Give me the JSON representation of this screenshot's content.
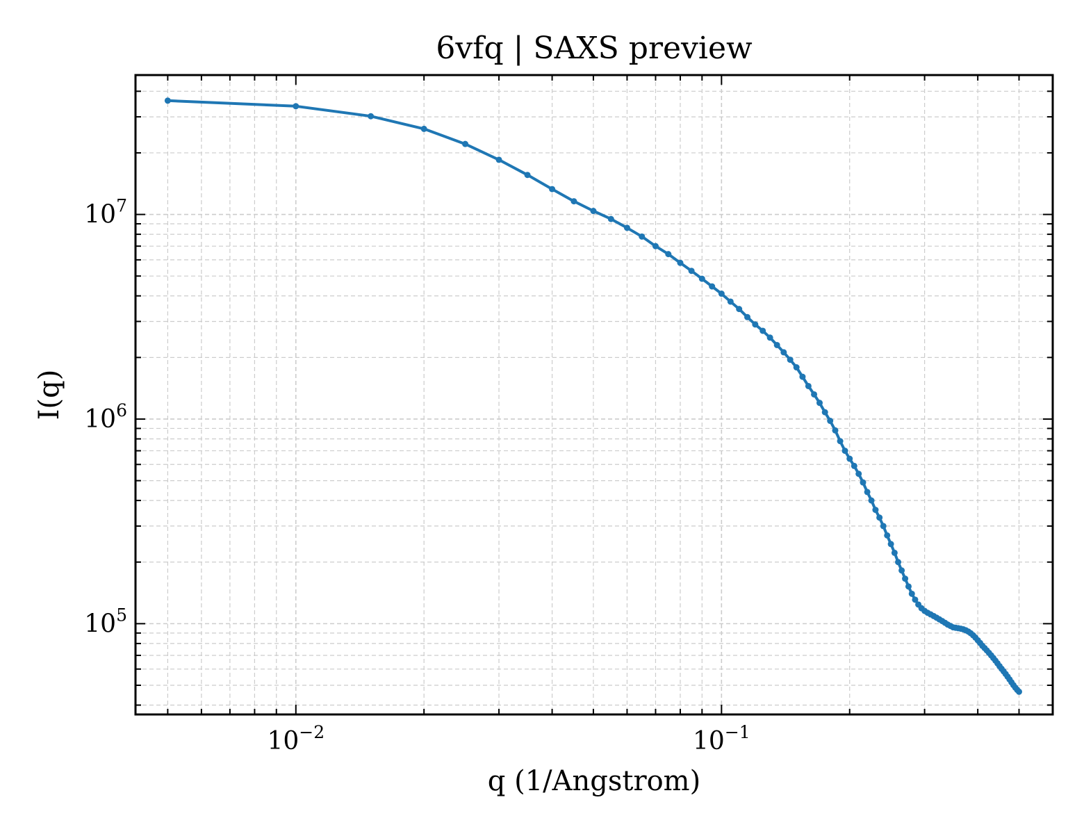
{
  "chart_data": {
    "type": "line",
    "title": "6vfq | SAXS preview",
    "xlabel": "q (1/Angstrom)",
    "ylabel": "I(q)",
    "xscale": "log",
    "yscale": "log",
    "xlim": [
      0.0042,
      0.6
    ],
    "ylim": [
      36000,
      48000000
    ],
    "grid": true,
    "x_ticks": [
      {
        "value": 0.01,
        "base": "10",
        "exp": "−2"
      },
      {
        "value": 0.1,
        "base": "10",
        "exp": "−1"
      }
    ],
    "y_ticks": [
      {
        "value": 100000,
        "base": "10",
        "exp": "5"
      },
      {
        "value": 1000000,
        "base": "10",
        "exp": "6"
      },
      {
        "value": 10000000,
        "base": "10",
        "exp": "7"
      }
    ],
    "colors": {
      "line": "#1f77b4",
      "grid": "#cccccc",
      "axes": "#000000"
    },
    "series": [
      {
        "x": [
          0.005,
          0.01,
          0.015,
          0.02,
          0.025,
          0.03,
          0.035,
          0.04,
          0.045,
          0.05,
          0.055,
          0.06,
          0.065,
          0.07,
          0.075,
          0.08,
          0.085,
          0.09,
          0.095,
          0.1,
          0.105,
          0.11,
          0.115,
          0.12,
          0.125,
          0.13,
          0.135,
          0.14,
          0.145,
          0.15,
          0.155,
          0.16,
          0.165,
          0.17,
          0.175,
          0.18,
          0.185,
          0.19,
          0.195,
          0.2,
          0.205,
          0.21,
          0.215,
          0.22,
          0.225,
          0.23,
          0.235,
          0.24,
          0.245,
          0.25,
          0.255,
          0.26,
          0.265,
          0.27,
          0.275,
          0.28,
          0.285,
          0.29,
          0.295,
          0.3,
          0.305,
          0.31,
          0.315,
          0.32,
          0.325,
          0.33,
          0.335,
          0.34,
          0.345,
          0.35,
          0.355,
          0.36,
          0.365,
          0.37,
          0.375,
          0.38,
          0.385,
          0.39,
          0.395,
          0.4,
          0.405,
          0.41,
          0.415,
          0.42,
          0.425,
          0.43,
          0.435,
          0.44,
          0.445,
          0.45,
          0.455,
          0.46,
          0.465,
          0.47,
          0.475,
          0.48,
          0.485,
          0.49,
          0.495,
          0.5
        ],
        "y": [
          36000000,
          33800000,
          30200000,
          26200000,
          22100000,
          18500000,
          15600000,
          13300000,
          11600000,
          10400000,
          9500000,
          8600000,
          7800000,
          7000000,
          6400000,
          5800000,
          5300000,
          4850000,
          4450000,
          4100000,
          3750000,
          3450000,
          3150000,
          2900000,
          2700000,
          2500000,
          2300000,
          2120000,
          1950000,
          1790000,
          1610000,
          1450000,
          1320000,
          1200000,
          1080000,
          980000,
          880000,
          780000,
          700000,
          640000,
          590000,
          540000,
          490000,
          440000,
          400000,
          360000,
          330000,
          300000,
          270000,
          245000,
          222000,
          200000,
          182000,
          166000,
          152000,
          140000,
          131000,
          124000,
          119000,
          115500,
          113000,
          111000,
          109000,
          107000,
          105000,
          103000,
          101000,
          99000,
          97500,
          96000,
          95500,
          95000,
          94500,
          93800,
          92800,
          91500,
          89800,
          87800,
          85500,
          83000,
          80500,
          78000,
          76000,
          74000,
          72000,
          70000,
          68000,
          66000,
          64000,
          62000,
          60200,
          58500,
          56800,
          55100,
          53400,
          51700,
          50100,
          48700,
          47500,
          46500
        ]
      }
    ]
  }
}
